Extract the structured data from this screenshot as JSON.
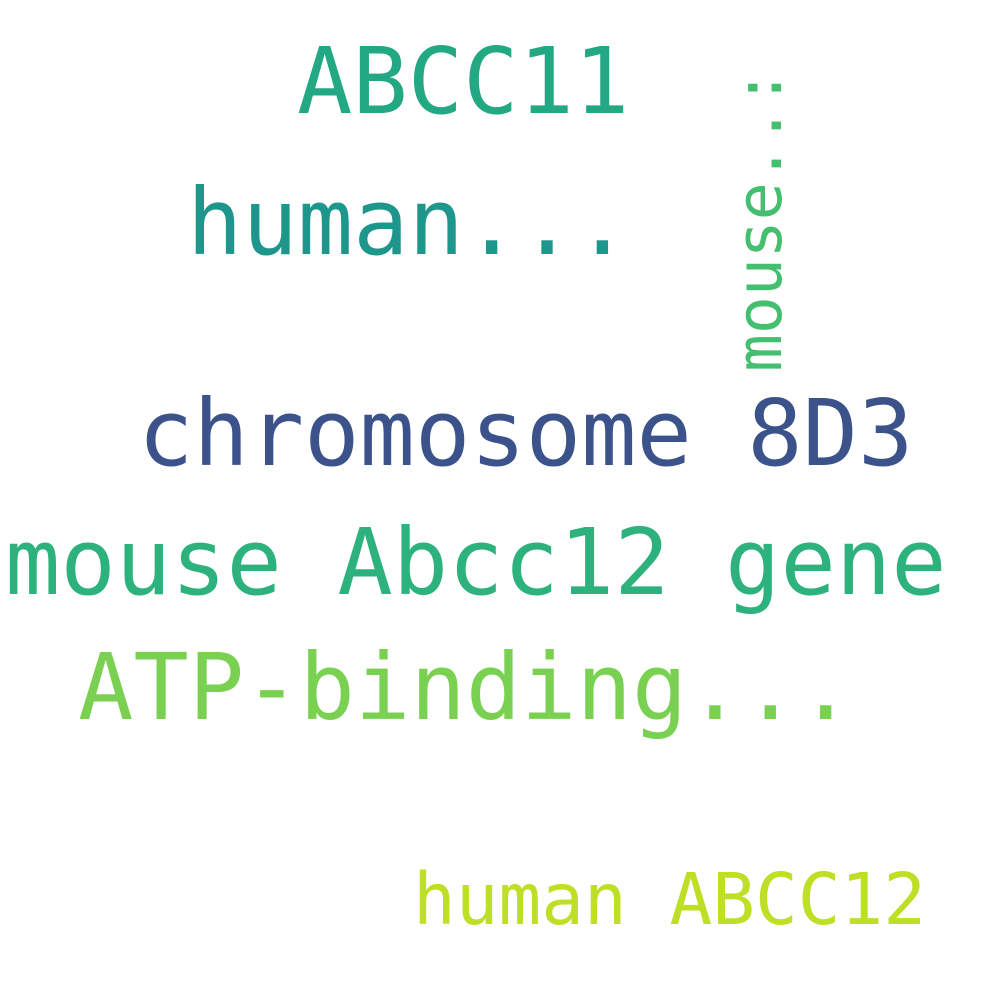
{
  "words": [
    {
      "text": "ABCC11",
      "color": "#23a884"
    },
    {
      "text": "human...",
      "color": "#1f968b"
    },
    {
      "text": "chromosome 8D3",
      "color": "#3b528b"
    },
    {
      "text": "mouse Abcc12 gene",
      "color": "#2db27d"
    },
    {
      "text": "ATP-binding...",
      "color": "#7ad151"
    },
    {
      "text": "human ABCC12",
      "color": "#bddf26"
    },
    {
      "text": "mouse..:",
      "color": "#44bf70"
    }
  ]
}
